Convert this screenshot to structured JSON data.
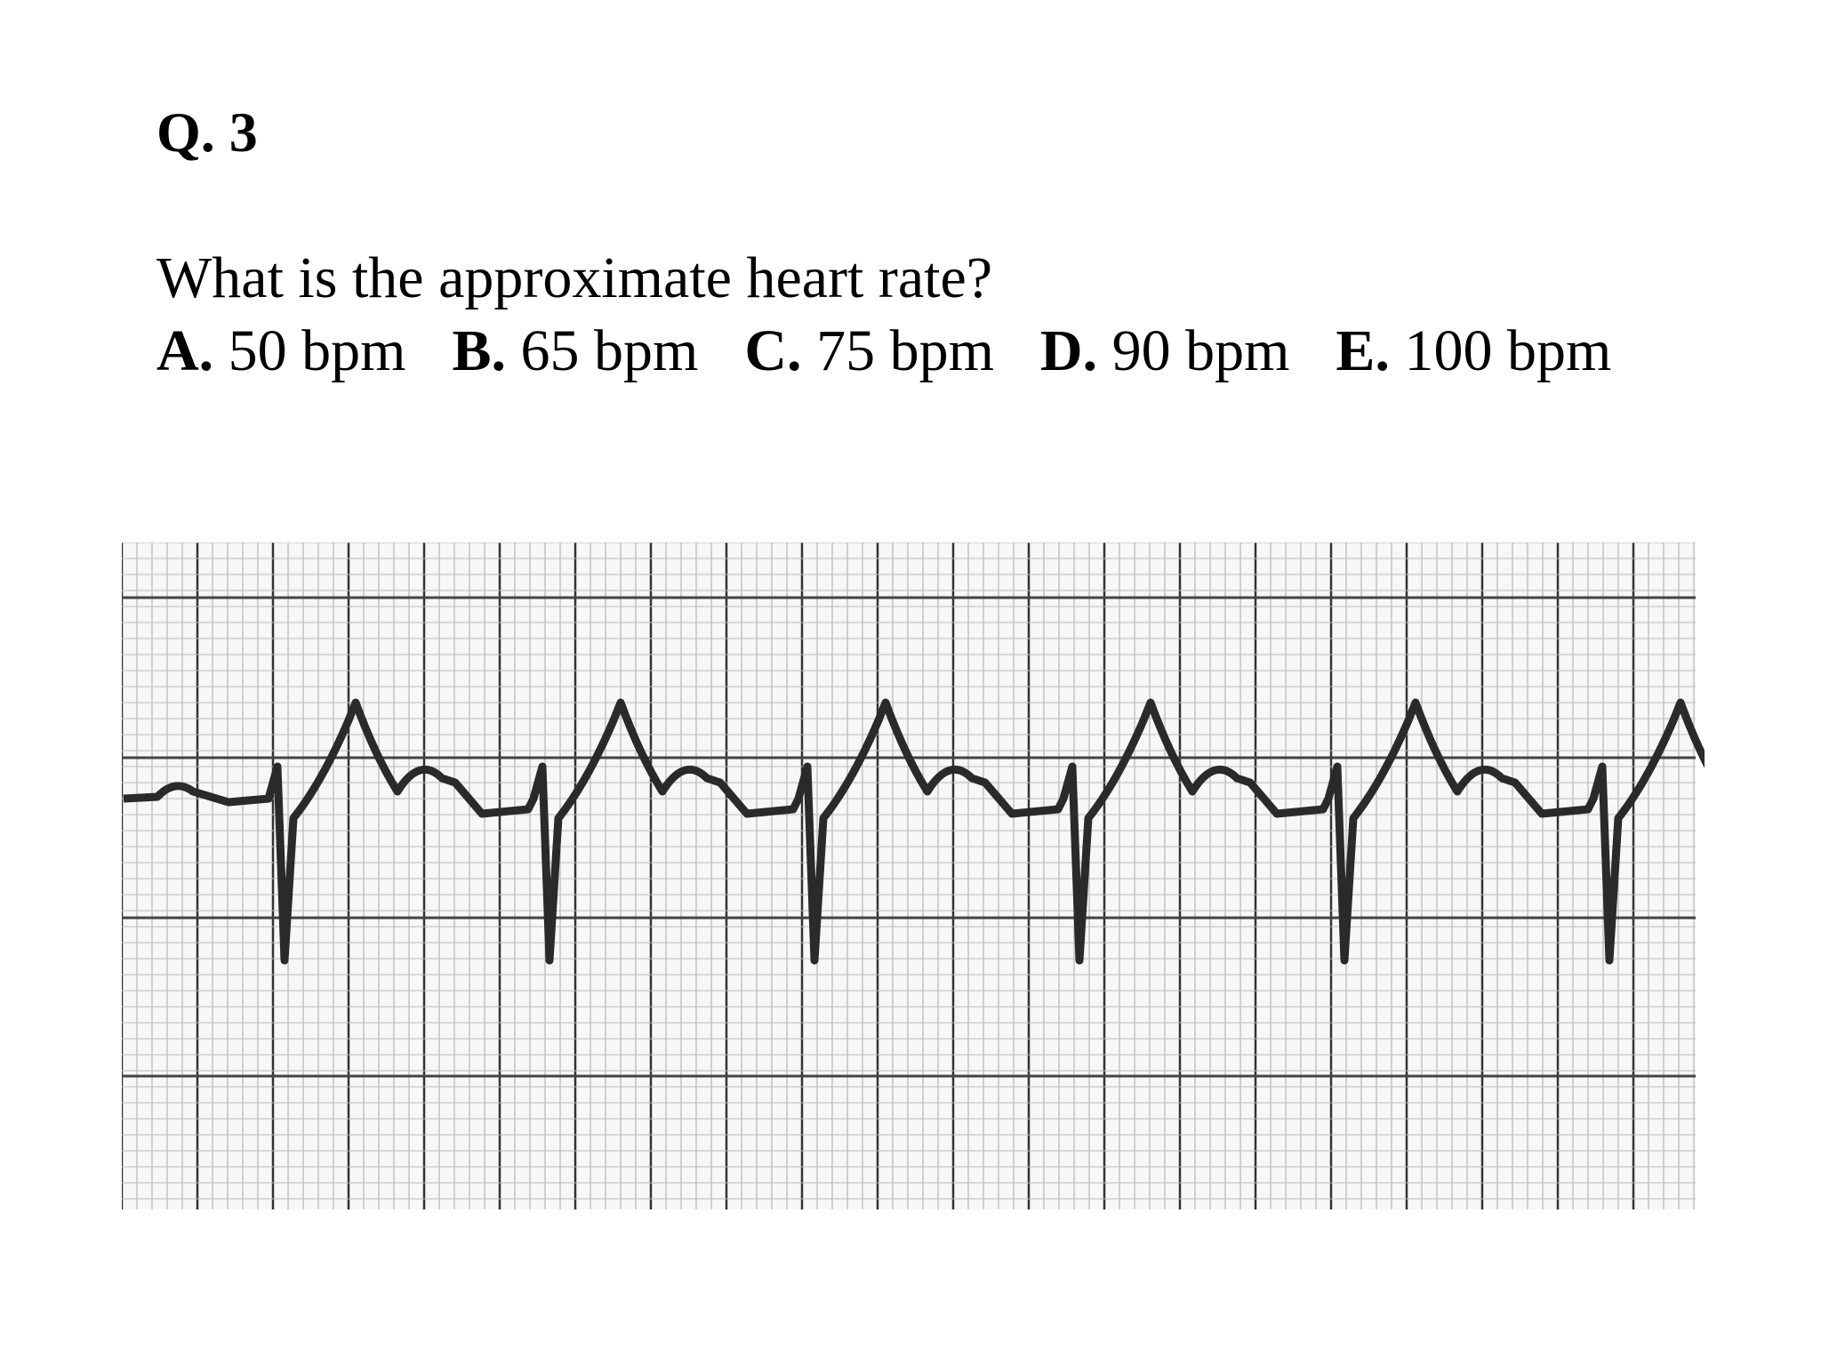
{
  "header": {
    "title": "Q. 3"
  },
  "question": {
    "text": "What is the approximate heart rate?",
    "options": [
      {
        "label": "A.",
        "text": "50 bpm"
      },
      {
        "label": "B.",
        "text": "65 bpm"
      },
      {
        "label": "C.",
        "text": "75 bpm"
      },
      {
        "label": "D.",
        "text": "90 bpm"
      },
      {
        "label": "E.",
        "text": "100 bpm"
      }
    ]
  }
}
